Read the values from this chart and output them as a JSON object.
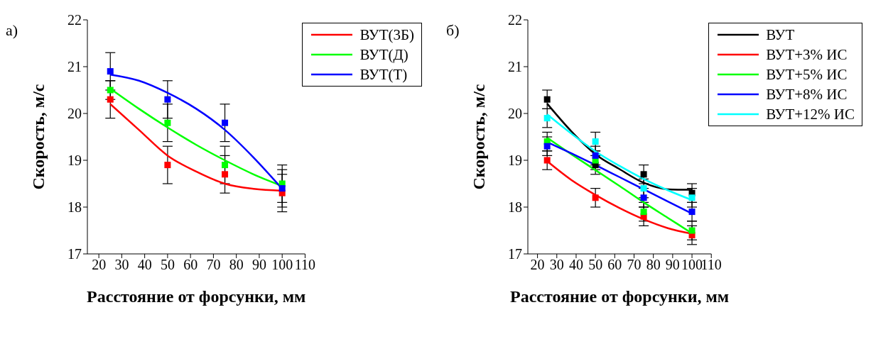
{
  "chart_data": [
    {
      "type": "scatter",
      "annotations": [
        "а)"
      ],
      "xlabel": "Расстояние от форсунки, мм",
      "ylabel": "Скорость, м/с",
      "xlim": [
        15,
        110
      ],
      "xticks": [
        20,
        30,
        40,
        50,
        60,
        70,
        80,
        90,
        100,
        110
      ],
      "ylim": [
        17,
        22
      ],
      "yticks": [
        17,
        18,
        19,
        20,
        21,
        22
      ],
      "grid": false,
      "legend": "top right",
      "marker": "square",
      "series": [
        {
          "color": "#ff0000",
          "x": [
            25,
            50,
            75,
            100
          ],
          "values": [
            20.3,
            18.9,
            18.7,
            18.3
          ],
          "errors": [
            0.4,
            0.4,
            0.4,
            0.4
          ]
        },
        {
          "color": "#00ff00",
          "x": [
            25,
            50,
            75,
            100
          ],
          "values": [
            20.5,
            19.8,
            18.9,
            18.5
          ],
          "errors": [
            0.2,
            0.4,
            0.4,
            0.4
          ]
        },
        {
          "color": "#0000ff",
          "x": [
            25,
            50,
            75,
            100
          ],
          "values": [
            20.9,
            20.3,
            19.8,
            18.4
          ],
          "errors": [
            0.4,
            0.4,
            0.4,
            0.4
          ]
        },
        {
          "type": "line",
          "name": "ВУТ(3Б)",
          "color": "#ff0000",
          "marker": "none",
          "x": [
            25,
            37.5,
            50,
            62.5,
            75,
            87.5,
            100
          ],
          "values": [
            20.2,
            19.65,
            19.1,
            18.76,
            18.5,
            18.39,
            18.35
          ]
        },
        {
          "type": "line",
          "name": "ВУТ(Д)",
          "color": "#00ff00",
          "marker": "none",
          "x": [
            25,
            37.5,
            50,
            62.5,
            75,
            87.5,
            100
          ],
          "values": [
            20.53,
            20.1,
            19.7,
            19.33,
            19.0,
            18.7,
            18.45
          ]
        },
        {
          "type": "line",
          "name": "ВУТ(Т)",
          "color": "#0000ff",
          "marker": "none",
          "x": [
            25,
            37.5,
            50,
            62.5,
            75,
            87.5,
            100
          ],
          "values": [
            20.83,
            20.7,
            20.44,
            20.1,
            19.65,
            19.06,
            18.39
          ]
        }
      ]
    },
    {
      "type": "scatter",
      "annotations": [
        "б)"
      ],
      "xlabel": "Расстояние от форсунки, мм",
      "ylabel": "Скорость, м/с",
      "xlim": [
        15,
        110
      ],
      "xticks": [
        20,
        30,
        40,
        50,
        60,
        70,
        80,
        90,
        100,
        110
      ],
      "ylim": [
        17,
        22
      ],
      "yticks": [
        17,
        18,
        19,
        20,
        21,
        22
      ],
      "grid": false,
      "legend": "top right",
      "marker": "square",
      "series": [
        {
          "color": "#000000",
          "x": [
            25,
            50,
            75,
            100
          ],
          "values": [
            20.3,
            18.9,
            18.7,
            18.3
          ],
          "errors": [
            0.2,
            0.2,
            0.2,
            0.2
          ]
        },
        {
          "color": "#ff0000",
          "x": [
            25,
            50,
            75,
            100
          ],
          "values": [
            19.0,
            18.2,
            17.8,
            17.4
          ],
          "errors": [
            0.2,
            0.2,
            0.2,
            0.2
          ]
        },
        {
          "color": "#00ff00",
          "x": [
            25,
            50,
            75,
            100
          ],
          "values": [
            19.4,
            19.0,
            17.9,
            17.5
          ],
          "errors": [
            0.2,
            0.2,
            0.2,
            0.2
          ]
        },
        {
          "color": "#0000ff",
          "x": [
            25,
            50,
            75,
            100
          ],
          "values": [
            19.3,
            19.1,
            18.2,
            17.9
          ],
          "errors": [
            0.2,
            0.2,
            0.2,
            0.2
          ]
        },
        {
          "color": "#00ffff",
          "x": [
            25,
            50,
            75,
            100
          ],
          "values": [
            19.9,
            19.4,
            18.4,
            18.2
          ],
          "errors": [
            0.2,
            0.2,
            0.2,
            0.2
          ]
        },
        {
          "type": "line",
          "name": "ВУТ",
          "color": "#000000",
          "marker": "none",
          "x": [
            25,
            37.5,
            50,
            62.5,
            75,
            87.5,
            100
          ],
          "values": [
            20.21,
            19.62,
            19.13,
            18.81,
            18.52,
            18.38,
            18.37
          ]
        },
        {
          "type": "line",
          "name": "ВУТ+3% ИС",
          "color": "#ff0000",
          "marker": "none",
          "x": [
            25,
            37.5,
            50,
            62.5,
            75,
            87.5,
            100
          ],
          "values": [
            18.98,
            18.58,
            18.26,
            17.98,
            17.74,
            17.55,
            17.43
          ]
        },
        {
          "type": "line",
          "name": "ВУТ+5% ИС",
          "color": "#00ff00",
          "marker": "none",
          "x": [
            25,
            37.5,
            50,
            62.5,
            75,
            87.5,
            100
          ],
          "values": [
            19.48,
            19.13,
            18.79,
            18.45,
            18.1,
            17.77,
            17.44
          ]
        },
        {
          "type": "line",
          "name": "ВУТ+8% ИС",
          "color": "#0000ff",
          "marker": "none",
          "x": [
            25,
            37.5,
            50,
            62.5,
            75,
            87.5,
            100
          ],
          "values": [
            19.39,
            19.15,
            18.9,
            18.64,
            18.38,
            18.12,
            17.86
          ]
        },
        {
          "type": "line",
          "name": "ВУТ+12% ИС",
          "color": "#00ffff",
          "marker": "none",
          "x": [
            25,
            37.5,
            50,
            62.5,
            75,
            87.5,
            100
          ],
          "values": [
            19.98,
            19.57,
            19.19,
            18.88,
            18.6,
            18.36,
            18.15
          ]
        }
      ]
    }
  ]
}
